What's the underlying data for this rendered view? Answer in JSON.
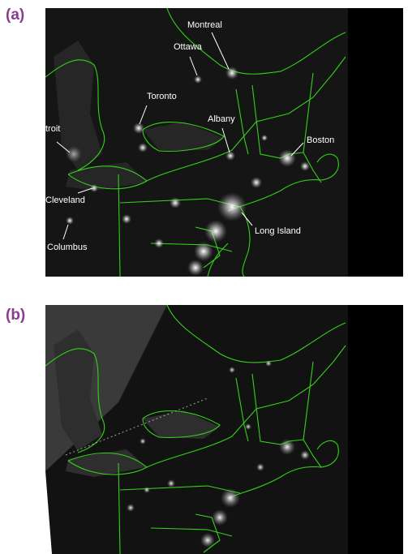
{
  "colors": {
    "panel_label": "#8b3a8f",
    "border_lines": "#33d11a",
    "background_dark": "#050505",
    "city_lights": "#ffffff"
  },
  "panels": [
    {
      "label": "(a)",
      "cities": [
        {
          "name": "Montreal"
        },
        {
          "name": "Ottawa"
        },
        {
          "name": "Toronto"
        },
        {
          "name": "Albany"
        },
        {
          "name": "Boston"
        },
        {
          "name": "troit"
        },
        {
          "name": "Cleveland"
        },
        {
          "name": "Long Island"
        },
        {
          "name": "Columbus"
        }
      ]
    },
    {
      "label": "(b)",
      "cities": []
    }
  ]
}
